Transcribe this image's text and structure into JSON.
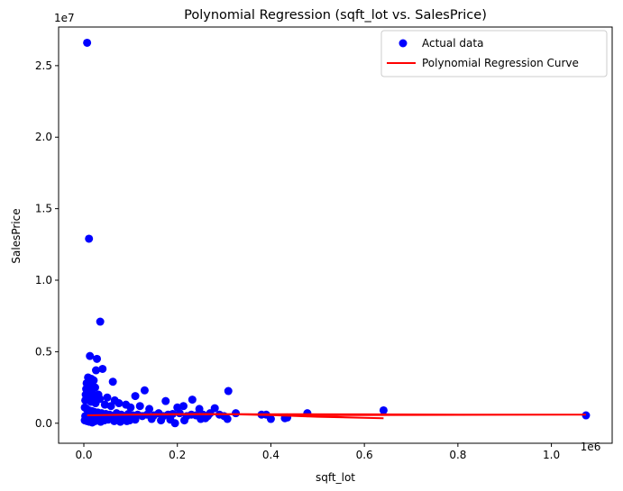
{
  "chart_data": {
    "type": "scatter",
    "title": "Polynomial Regression (sqft_lot vs. SalesPrice)",
    "xlabel": "sqft_lot",
    "ylabel": "SalesPrice",
    "x_offset_text": "1e6",
    "y_offset_text": "1e7",
    "xlim": [
      -0.054,
      1.13
    ],
    "ylim": [
      -0.14,
      2.77
    ],
    "x_ticks": [
      0.0,
      0.2,
      0.4,
      0.6,
      0.8,
      1.0
    ],
    "x_tick_labels": [
      "0.0",
      "0.2",
      "0.4",
      "0.6",
      "0.8",
      "1.0"
    ],
    "y_ticks": [
      0.0,
      0.5,
      1.0,
      1.5,
      2.0,
      2.5
    ],
    "y_tick_labels": [
      "0.0",
      "0.5",
      "1.0",
      "1.5",
      "2.0",
      "2.5"
    ],
    "grid": false,
    "legend_position": "top-right",
    "series": [
      {
        "name": "Actual data",
        "kind": "scatter",
        "color": "#0000ff",
        "points": [
          [
            0.007,
            2.66
          ],
          [
            0.011,
            1.29
          ],
          [
            0.035,
            0.71
          ],
          [
            0.013,
            0.47
          ],
          [
            0.028,
            0.45
          ],
          [
            0.04,
            0.38
          ],
          [
            0.026,
            0.37
          ],
          [
            0.009,
            0.32
          ],
          [
            0.016,
            0.31
          ],
          [
            0.021,
            0.3
          ],
          [
            0.006,
            0.28
          ],
          [
            0.012,
            0.27
          ],
          [
            0.019,
            0.26
          ],
          [
            0.024,
            0.25
          ],
          [
            0.005,
            0.24
          ],
          [
            0.014,
            0.23
          ],
          [
            0.008,
            0.22
          ],
          [
            0.018,
            0.21
          ],
          [
            0.031,
            0.2
          ],
          [
            0.062,
            0.29
          ],
          [
            0.004,
            0.2
          ],
          [
            0.01,
            0.19
          ],
          [
            0.02,
            0.18
          ],
          [
            0.034,
            0.17
          ],
          [
            0.05,
            0.18
          ],
          [
            0.066,
            0.16
          ],
          [
            0.13,
            0.23
          ],
          [
            0.11,
            0.19
          ],
          [
            0.003,
            0.16
          ],
          [
            0.015,
            0.15
          ],
          [
            0.025,
            0.14
          ],
          [
            0.045,
            0.13
          ],
          [
            0.058,
            0.12
          ],
          [
            0.075,
            0.14
          ],
          [
            0.09,
            0.13
          ],
          [
            0.1,
            0.11
          ],
          [
            0.12,
            0.12
          ],
          [
            0.14,
            0.1
          ],
          [
            0.175,
            0.155
          ],
          [
            0.232,
            0.165
          ],
          [
            0.2,
            0.11
          ],
          [
            0.213,
            0.12
          ],
          [
            0.247,
            0.1
          ],
          [
            0.28,
            0.105
          ],
          [
            0.309,
            0.225
          ],
          [
            0.325,
            0.07
          ],
          [
            0.307,
            0.03
          ],
          [
            0.38,
            0.06
          ],
          [
            0.39,
            0.06
          ],
          [
            0.4,
            0.03
          ],
          [
            0.43,
            0.035
          ],
          [
            0.435,
            0.04
          ],
          [
            0.478,
            0.07
          ],
          [
            0.641,
            0.09
          ],
          [
            1.074,
            0.055
          ],
          [
            0.002,
            0.11
          ],
          [
            0.006,
            0.1
          ],
          [
            0.011,
            0.09
          ],
          [
            0.017,
            0.085
          ],
          [
            0.022,
            0.08
          ],
          [
            0.03,
            0.075
          ],
          [
            0.038,
            0.07
          ],
          [
            0.047,
            0.065
          ],
          [
            0.055,
            0.06
          ],
          [
            0.07,
            0.07
          ],
          [
            0.08,
            0.06
          ],
          [
            0.095,
            0.065
          ],
          [
            0.105,
            0.055
          ],
          [
            0.115,
            0.06
          ],
          [
            0.125,
            0.05
          ],
          [
            0.135,
            0.06
          ],
          [
            0.15,
            0.055
          ],
          [
            0.16,
            0.07
          ],
          [
            0.17,
            0.05
          ],
          [
            0.18,
            0.06
          ],
          [
            0.19,
            0.065
          ],
          [
            0.205,
            0.07
          ],
          [
            0.22,
            0.05
          ],
          [
            0.23,
            0.06
          ],
          [
            0.24,
            0.055
          ],
          [
            0.255,
            0.06
          ],
          [
            0.265,
            0.05
          ],
          [
            0.27,
            0.07
          ],
          [
            0.29,
            0.06
          ],
          [
            0.3,
            0.05
          ],
          [
            0.003,
            0.05
          ],
          [
            0.009,
            0.04
          ],
          [
            0.014,
            0.035
          ],
          [
            0.02,
            0.03
          ],
          [
            0.027,
            0.04
          ],
          [
            0.033,
            0.03
          ],
          [
            0.041,
            0.035
          ],
          [
            0.052,
            0.025
          ],
          [
            0.06,
            0.03
          ],
          [
            0.072,
            0.025
          ],
          [
            0.085,
            0.03
          ],
          [
            0.098,
            0.02
          ],
          [
            0.11,
            0.025
          ],
          [
            0.145,
            0.03
          ],
          [
            0.165,
            0.02
          ],
          [
            0.185,
            0.025
          ],
          [
            0.195,
            0.0
          ],
          [
            0.215,
            0.02
          ],
          [
            0.25,
            0.03
          ],
          [
            0.26,
            0.035
          ],
          [
            0.002,
            0.02
          ],
          [
            0.007,
            0.015
          ],
          [
            0.012,
            0.01
          ],
          [
            0.018,
            0.005
          ],
          [
            0.024,
            0.015
          ],
          [
            0.036,
            0.01
          ],
          [
            0.044,
            0.02
          ],
          [
            0.065,
            0.015
          ],
          [
            0.078,
            0.01
          ],
          [
            0.092,
            0.015
          ]
        ]
      },
      {
        "name": "Polynomial Regression Curve",
        "kind": "line",
        "color": "#ff0000",
        "path": [
          [
            0.007,
            0.055
          ],
          [
            0.02,
            0.056
          ],
          [
            0.05,
            0.058
          ],
          [
            0.1,
            0.06
          ],
          [
            0.15,
            0.062
          ],
          [
            0.2,
            0.064
          ],
          [
            0.25,
            0.065
          ],
          [
            0.3,
            0.064
          ],
          [
            0.35,
            0.062
          ],
          [
            0.38,
            0.06
          ],
          [
            0.42,
            0.055
          ],
          [
            0.5,
            0.047
          ],
          [
            0.6,
            0.038
          ],
          [
            0.641,
            0.035
          ],
          [
            0.5,
            0.045
          ],
          [
            0.4,
            0.057
          ],
          [
            0.3,
            0.064
          ],
          [
            0.2,
            0.064
          ],
          [
            0.1,
            0.06
          ],
          [
            0.35,
            0.063
          ],
          [
            0.478,
            0.056
          ],
          [
            0.7,
            0.058
          ],
          [
            0.9,
            0.059
          ],
          [
            1.074,
            0.06
          ],
          [
            0.8,
            0.06
          ],
          [
            0.6,
            0.062
          ],
          [
            0.45,
            0.063
          ],
          [
            0.3,
            0.062
          ]
        ]
      }
    ]
  }
}
